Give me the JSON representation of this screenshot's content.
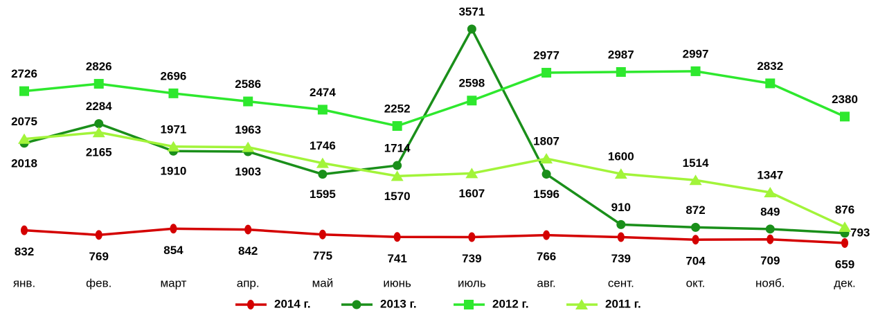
{
  "chart_data": {
    "type": "line",
    "categories": [
      "янв.",
      "фев.",
      "март",
      "апр.",
      "май",
      "июнь",
      "июль",
      "авг.",
      "сент.",
      "окт.",
      "нояб.",
      "дек."
    ],
    "series": [
      {
        "name": "2014 г.",
        "color": "#d40000",
        "marker": "diamond",
        "values": [
          832,
          769,
          854,
          842,
          775,
          741,
          739,
          766,
          739,
          704,
          709,
          659
        ]
      },
      {
        "name": "2013 г.",
        "color": "#1a8f1a",
        "marker": "circle",
        "values": [
          2018,
          2284,
          1910,
          1903,
          1595,
          1714,
          3571,
          1596,
          910,
          872,
          849,
          793
        ]
      },
      {
        "name": "2012 г.",
        "color": "#2ee82e",
        "marker": "square",
        "values": [
          2726,
          2826,
          2696,
          2586,
          2474,
          2252,
          2598,
          2977,
          2987,
          2997,
          2832,
          2380
        ]
      },
      {
        "name": "2011 г.",
        "color": "#a2f43a",
        "marker": "triangle",
        "values": [
          2075,
          2165,
          1971,
          1963,
          1746,
          1570,
          1607,
          1807,
          1600,
          1514,
          1347,
          876
        ]
      }
    ],
    "legend": "bottom"
  }
}
